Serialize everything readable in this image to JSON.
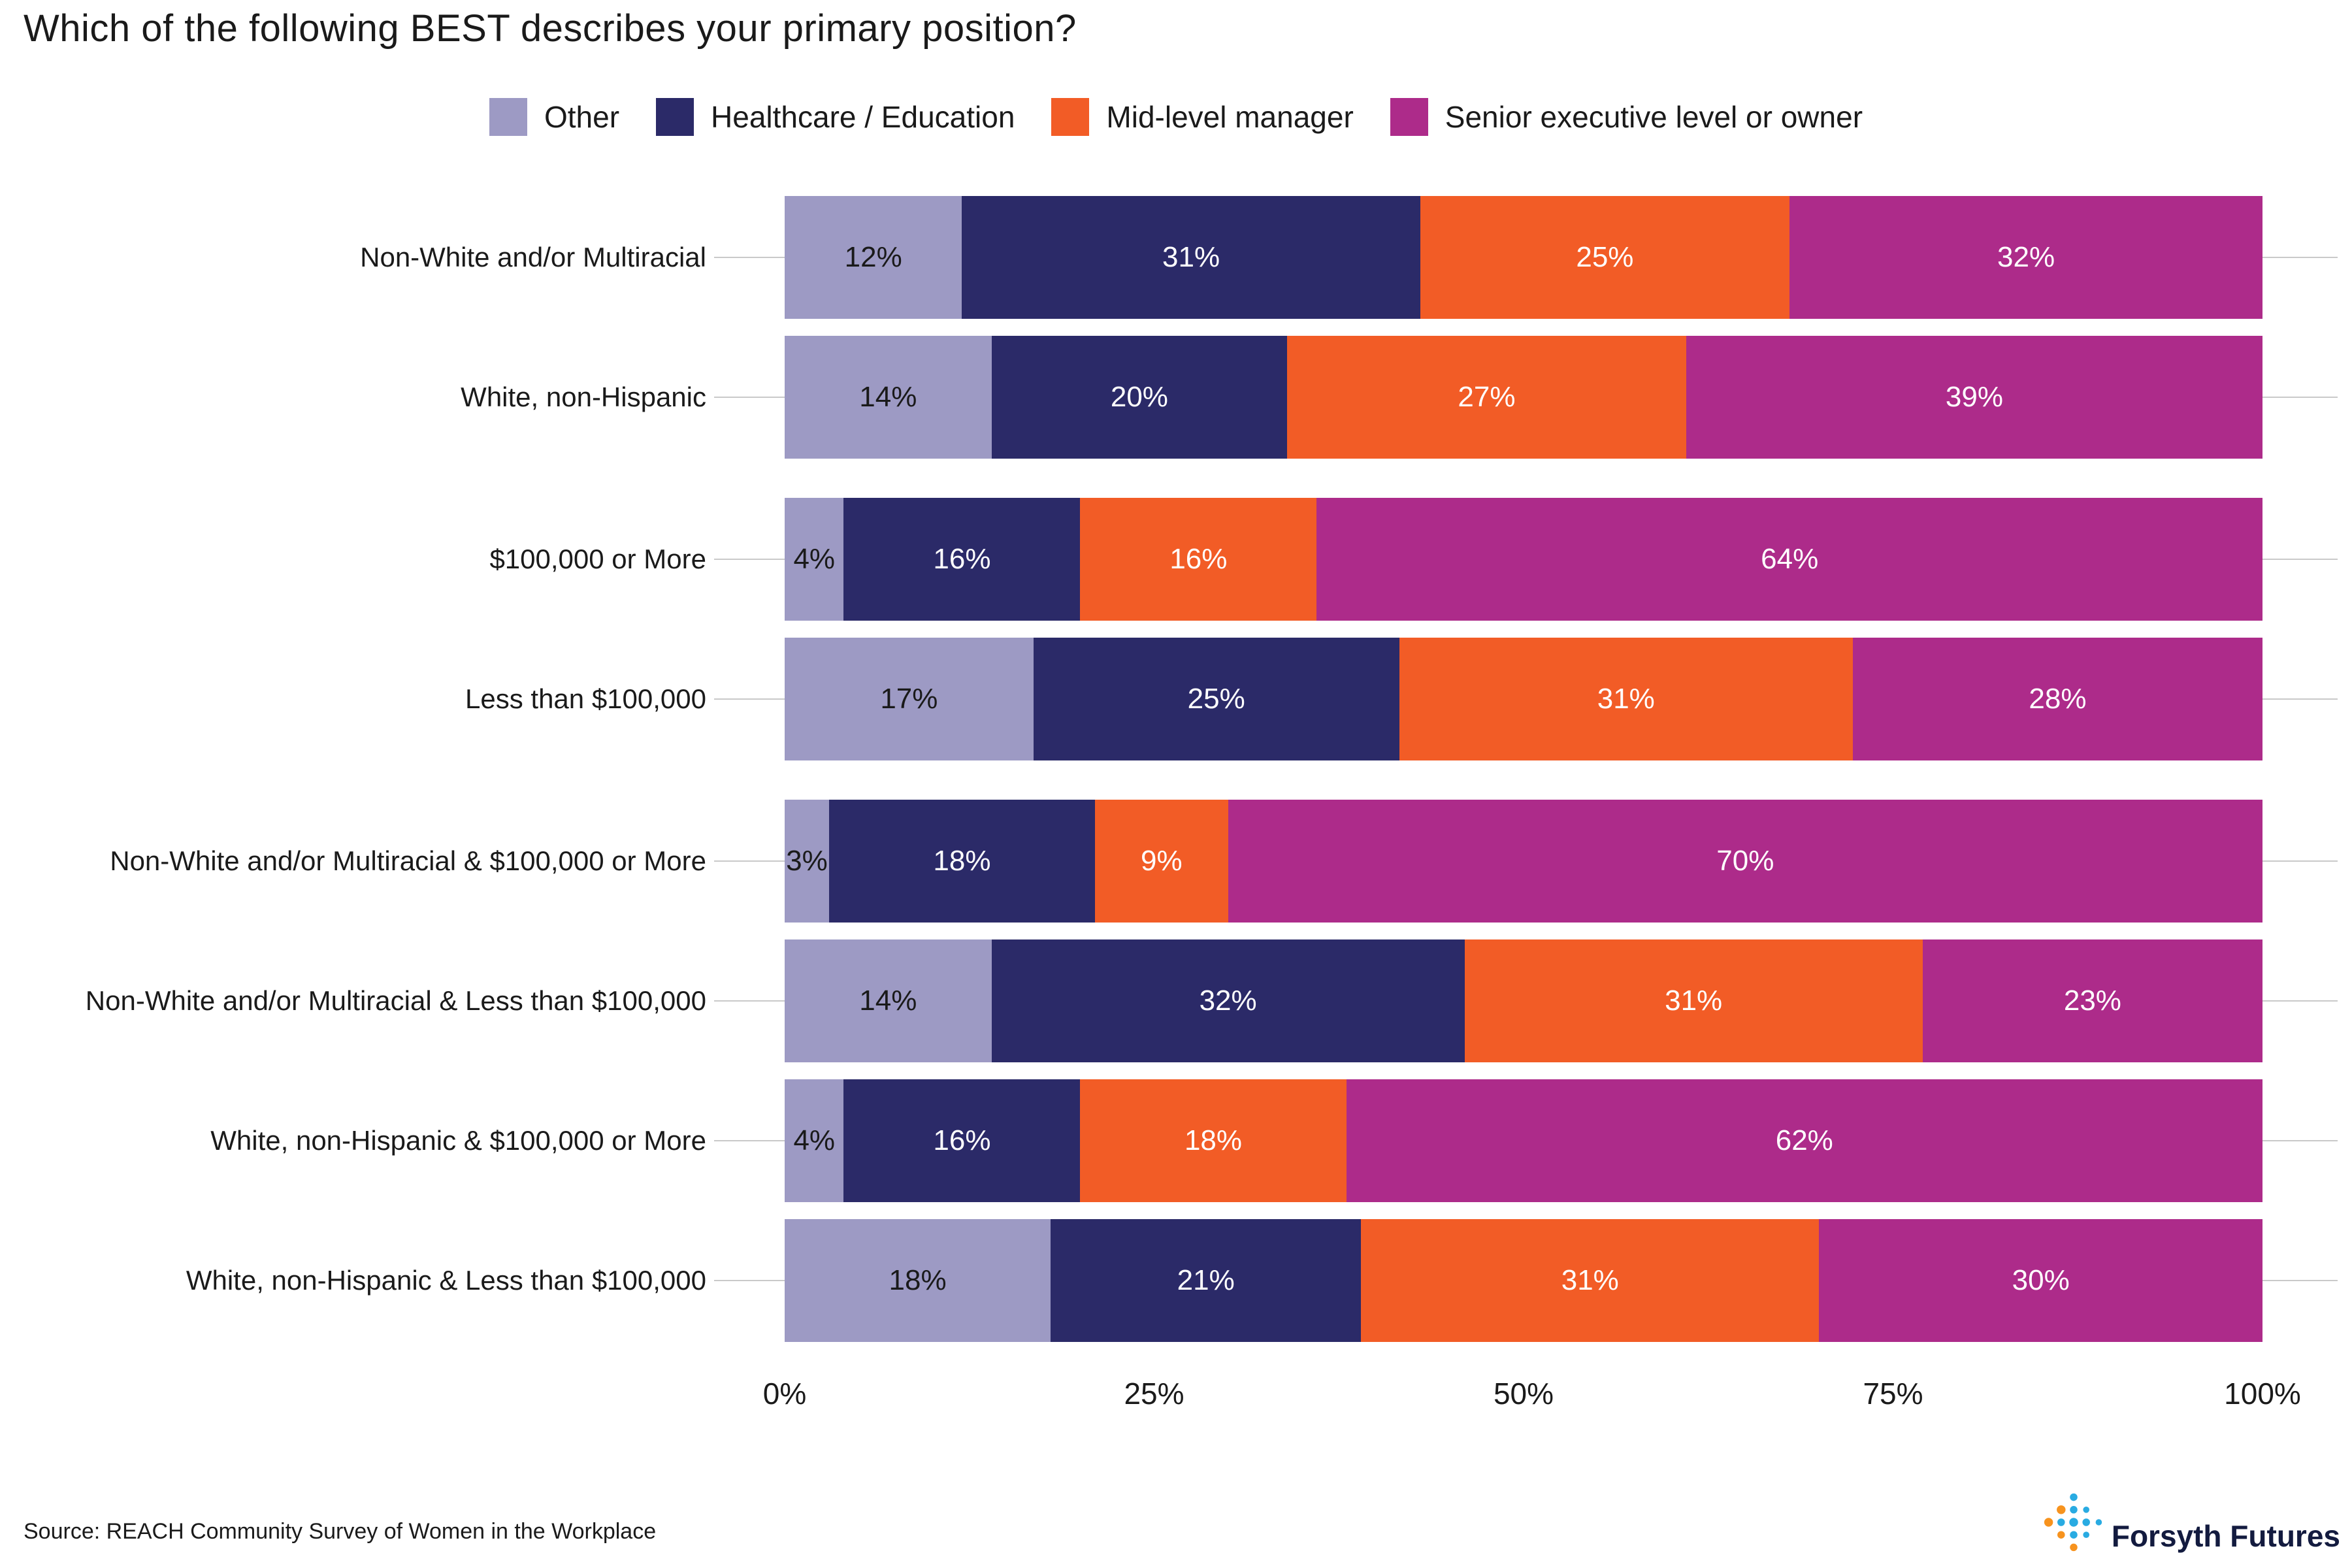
{
  "title": "Which of the following BEST describes your primary position?",
  "legend": [
    {
      "label": "Other",
      "color": "#9d9ac4"
    },
    {
      "label": "Healthcare / Education",
      "color": "#2b2a68"
    },
    {
      "label": "Mid-level manager",
      "color": "#f25c26"
    },
    {
      "label": "Senior executive level or owner",
      "color": "#ad2b8a"
    }
  ],
  "chart_data": {
    "type": "bar",
    "orientation": "horizontal",
    "stacked": true,
    "unit": "%",
    "title": "Which of the following BEST describes your primary position?",
    "categories": [
      "Non-White and/or Multiracial",
      "White, non-Hispanic",
      "$100,000 or More",
      "Less than $100,000",
      "Non-White and/or Multiracial & $100,000 or More",
      "Non-White and/or Multiracial & Less than $100,000",
      "White, non-Hispanic & $100,000 or More",
      "White, non-Hispanic & Less than $100,000"
    ],
    "groups": [
      [
        0,
        1
      ],
      [
        2,
        3
      ],
      [
        4,
        5,
        6,
        7
      ]
    ],
    "series": [
      {
        "name": "Other",
        "color": "#9d9ac4",
        "text_color": "#1a1a1a",
        "values": [
          12,
          14,
          4,
          17,
          3,
          14,
          4,
          18
        ]
      },
      {
        "name": "Healthcare / Education",
        "color": "#2b2a68",
        "text_color": "#ffffff",
        "values": [
          31,
          20,
          16,
          25,
          18,
          32,
          16,
          21
        ]
      },
      {
        "name": "Mid-level manager",
        "color": "#f25c26",
        "text_color": "#ffffff",
        "values": [
          25,
          27,
          16,
          31,
          9,
          31,
          18,
          31
        ]
      },
      {
        "name": "Senior executive level or owner",
        "color": "#ad2b8a",
        "text_color": "#ffffff",
        "values": [
          32,
          39,
          64,
          28,
          70,
          23,
          62,
          30
        ]
      }
    ],
    "value_suffix": "%",
    "x_axis": {
      "ticks": [
        "0%",
        "25%",
        "50%",
        "75%",
        "100%"
      ],
      "range": [
        0,
        100
      ]
    },
    "legend_position": "top",
    "grid": "row-lines"
  },
  "footer": {
    "source": "Source: REACH Community Survey of Women in the Workplace",
    "logo_text": "Forsyth Futures"
  },
  "logo_colors": {
    "blue": "#29abe2",
    "orange": "#f7931e"
  }
}
